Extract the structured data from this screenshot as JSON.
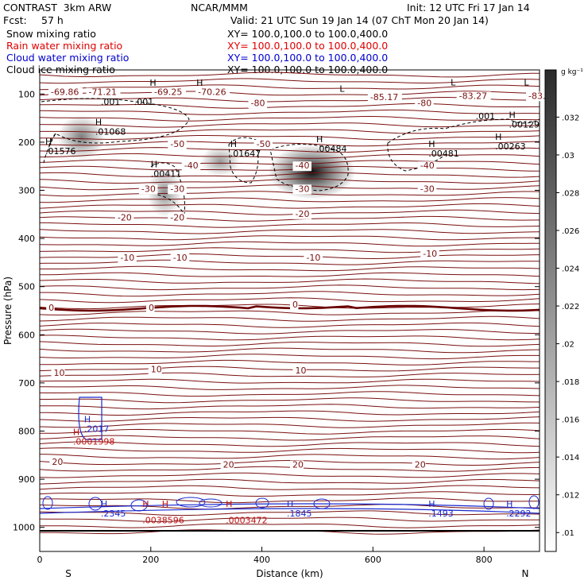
{
  "header": {
    "title": "CONTRAST  3km ARW",
    "org": "NCAR/MMM",
    "init": "Init: 12 UTC Fri 17 Jan 14",
    "fcst_label": "Fcst:",
    "fcst_value": "57 h",
    "valid": "Valid: 21 UTC Sun 19 Jan 14 (07 ChT Mon 20 Jan 14)"
  },
  "fields": [
    {
      "name": "Snow mixing ratio",
      "xy": "XY= 100.0,100.0 to 100.0,400.0",
      "color": "#000000"
    },
    {
      "name": "Rain water mixing ratio",
      "xy": "XY= 100.0,100.0 to 100.0,400.0",
      "color": "#e00000"
    },
    {
      "name": "Cloud water mixing ratio",
      "xy": "XY= 100.0,100.0 to 100.0,400.0",
      "color": "#0000d0"
    },
    {
      "name": "Cloud ice mixing ratio",
      "xy": "XY= 100.0,100.0 to 100.0,400.0",
      "color": "#000000"
    }
  ],
  "colors": {
    "temperature": "#7a1010",
    "zero_line": "#6a0000",
    "cloud_water": "#1a2ad0",
    "rain": "#c01010",
    "ice": "#000000"
  },
  "chart_data": {
    "type": "contour",
    "xlabel": "Distance (km)",
    "ylabel": "Pressure (hPa)",
    "xlim": [
      0,
      900
    ],
    "ylim": [
      1050,
      50
    ],
    "xticks": [
      0,
      200,
      400,
      600,
      800
    ],
    "yticks": [
      100,
      200,
      300,
      400,
      500,
      600,
      700,
      800,
      900,
      1000
    ],
    "x_end_labels": {
      "left": "S",
      "right": "N"
    },
    "colorbar": {
      "unit": "g kg⁻¹",
      "ticks": [
        ".01",
        ".012",
        ".014",
        ".016",
        ".018",
        ".02",
        ".022",
        ".024",
        ".026",
        ".028",
        ".03",
        ".032"
      ],
      "tick_values": [
        0.01,
        0.012,
        0.014,
        0.016,
        0.018,
        0.02,
        0.022,
        0.024,
        0.026,
        0.028,
        0.03,
        0.032
      ],
      "range": [
        0.009,
        0.0345
      ]
    },
    "temperature_labels": [
      {
        "x": 20,
        "p": 102,
        "text": "-69.86"
      },
      {
        "x": 88,
        "p": 102,
        "text": "-71.21"
      },
      {
        "x": 206,
        "p": 102,
        "text": "-69.25"
      },
      {
        "x": 285,
        "p": 102,
        "text": "-70.26"
      },
      {
        "x": 380,
        "p": 125,
        "text": "-80"
      },
      {
        "x": 680,
        "p": 125,
        "text": "-80"
      },
      {
        "x": 595,
        "p": 113,
        "text": "-85.17"
      },
      {
        "x": 755,
        "p": 110,
        "text": "-83.27"
      },
      {
        "x": 880,
        "p": 110,
        "text": "-83."
      },
      {
        "x": 235,
        "p": 210,
        "text": "-50"
      },
      {
        "x": 390,
        "p": 210,
        "text": "-50"
      },
      {
        "x": 260,
        "p": 255,
        "text": "-40"
      },
      {
        "x": 460,
        "p": 255,
        "text": "-40"
      },
      {
        "x": 685,
        "p": 255,
        "text": "-40"
      },
      {
        "x": 183,
        "p": 303,
        "text": "-30"
      },
      {
        "x": 235,
        "p": 303,
        "text": "-30"
      },
      {
        "x": 460,
        "p": 303,
        "text": "-30"
      },
      {
        "x": 685,
        "p": 303,
        "text": "-30"
      },
      {
        "x": 140,
        "p": 363,
        "text": "-20"
      },
      {
        "x": 235,
        "p": 363,
        "text": "-20"
      },
      {
        "x": 460,
        "p": 355,
        "text": "-20"
      },
      {
        "x": 145,
        "p": 446,
        "text": "-10"
      },
      {
        "x": 240,
        "p": 446,
        "text": "-10"
      },
      {
        "x": 480,
        "p": 446,
        "text": "-10"
      },
      {
        "x": 690,
        "p": 438,
        "text": "-10"
      },
      {
        "x": 16,
        "p": 550,
        "text": "0"
      },
      {
        "x": 196,
        "p": 550,
        "text": "0"
      },
      {
        "x": 455,
        "p": 543,
        "text": "0"
      },
      {
        "x": 25,
        "p": 685,
        "text": "10"
      },
      {
        "x": 200,
        "p": 678,
        "text": "10"
      },
      {
        "x": 460,
        "p": 680,
        "text": "10"
      },
      {
        "x": 22,
        "p": 870,
        "text": "20"
      },
      {
        "x": 330,
        "p": 876,
        "text": "20"
      },
      {
        "x": 455,
        "p": 876,
        "text": "20"
      },
      {
        "x": 675,
        "p": 876,
        "text": "20"
      }
    ],
    "max_min_labels": [
      {
        "x": 10,
        "p": 205,
        "mark": "H",
        "value": ".01576",
        "color": "#000000"
      },
      {
        "x": 100,
        "p": 165,
        "mark": "H",
        "value": ".01068",
        "color": "#000000"
      },
      {
        "x": 200,
        "p": 252,
        "mark": "H",
        "value": ".00411",
        "color": "#000000"
      },
      {
        "x": 343,
        "p": 210,
        "mark": "H",
        "value": ".01647",
        "color": "#000000"
      },
      {
        "x": 498,
        "p": 200,
        "mark": "H",
        "value": ".00484",
        "color": "#000000"
      },
      {
        "x": 700,
        "p": 210,
        "mark": "H",
        "value": ".00481",
        "color": "#000000"
      },
      {
        "x": 820,
        "p": 195,
        "mark": "H",
        "value": ".00263",
        "color": "#000000"
      },
      {
        "x": 845,
        "p": 150,
        "mark": "H",
        "value": ".00129",
        "color": "#000000"
      },
      {
        "x": 198,
        "p": 83,
        "mark": "H",
        "value": "",
        "color": "#000000"
      },
      {
        "x": 282,
        "p": 83,
        "mark": "H",
        "value": "",
        "color": "#000000"
      },
      {
        "x": 540,
        "p": 95,
        "mark": "L",
        "value": "",
        "color": "#000000"
      },
      {
        "x": 740,
        "p": 82,
        "mark": "L",
        "value": "",
        "color": "#000000"
      },
      {
        "x": 872,
        "p": 82,
        "mark": "L",
        "value": "",
        "color": "#000000"
      },
      {
        "x": 80,
        "p": 782,
        "mark": "H",
        "value": ".2017",
        "color": "#1a2ad0"
      },
      {
        "x": 60,
        "p": 808,
        "mark": "H",
        "value": ".0001998",
        "color": "#c01010"
      },
      {
        "x": 110,
        "p": 958,
        "mark": "H",
        "value": ".2345",
        "color": "#1a2ad0"
      },
      {
        "x": 185,
        "p": 958,
        "mark": "H",
        "value": "",
        "color": "#c01010"
      },
      {
        "x": 220,
        "p": 958,
        "mark": "H",
        "value": "",
        "color": "#c01010"
      },
      {
        "x": 185,
        "p": 972,
        "mark": "",
        "value": ".0038596",
        "color": "#c01010"
      },
      {
        "x": 335,
        "p": 958,
        "mark": "H",
        "value": "",
        "color": "#c01010"
      },
      {
        "x": 335,
        "p": 972,
        "mark": "",
        "value": ".0003472",
        "color": "#c01010"
      },
      {
        "x": 445,
        "p": 958,
        "mark": "H",
        "value": ".1845",
        "color": "#1a2ad0"
      },
      {
        "x": 700,
        "p": 958,
        "mark": "H",
        "value": ".1493",
        "color": "#1a2ad0"
      },
      {
        "x": 840,
        "p": 958,
        "mark": "H",
        "value": ".2292",
        "color": "#1a2ad0"
      }
    ],
    "ice_contour_labels": [
      {
        "x": 110,
        "p": 123,
        "text": ".001"
      },
      {
        "x": 170,
        "p": 123,
        "text": ".001"
      },
      {
        "x": 785,
        "p": 152,
        "text": ".001"
      }
    ],
    "shaded_blobs": [
      {
        "x": 75,
        "p": 190,
        "rx": 30,
        "rp": 30,
        "value": 0.014
      },
      {
        "x": 225,
        "p": 305,
        "rx": 22,
        "rp": 35,
        "value": 0.012
      },
      {
        "x": 490,
        "p": 262,
        "rx": 55,
        "rp": 40,
        "value": 0.032
      },
      {
        "x": 325,
        "p": 240,
        "rx": 25,
        "rp": 15,
        "value": 0.011
      }
    ]
  }
}
